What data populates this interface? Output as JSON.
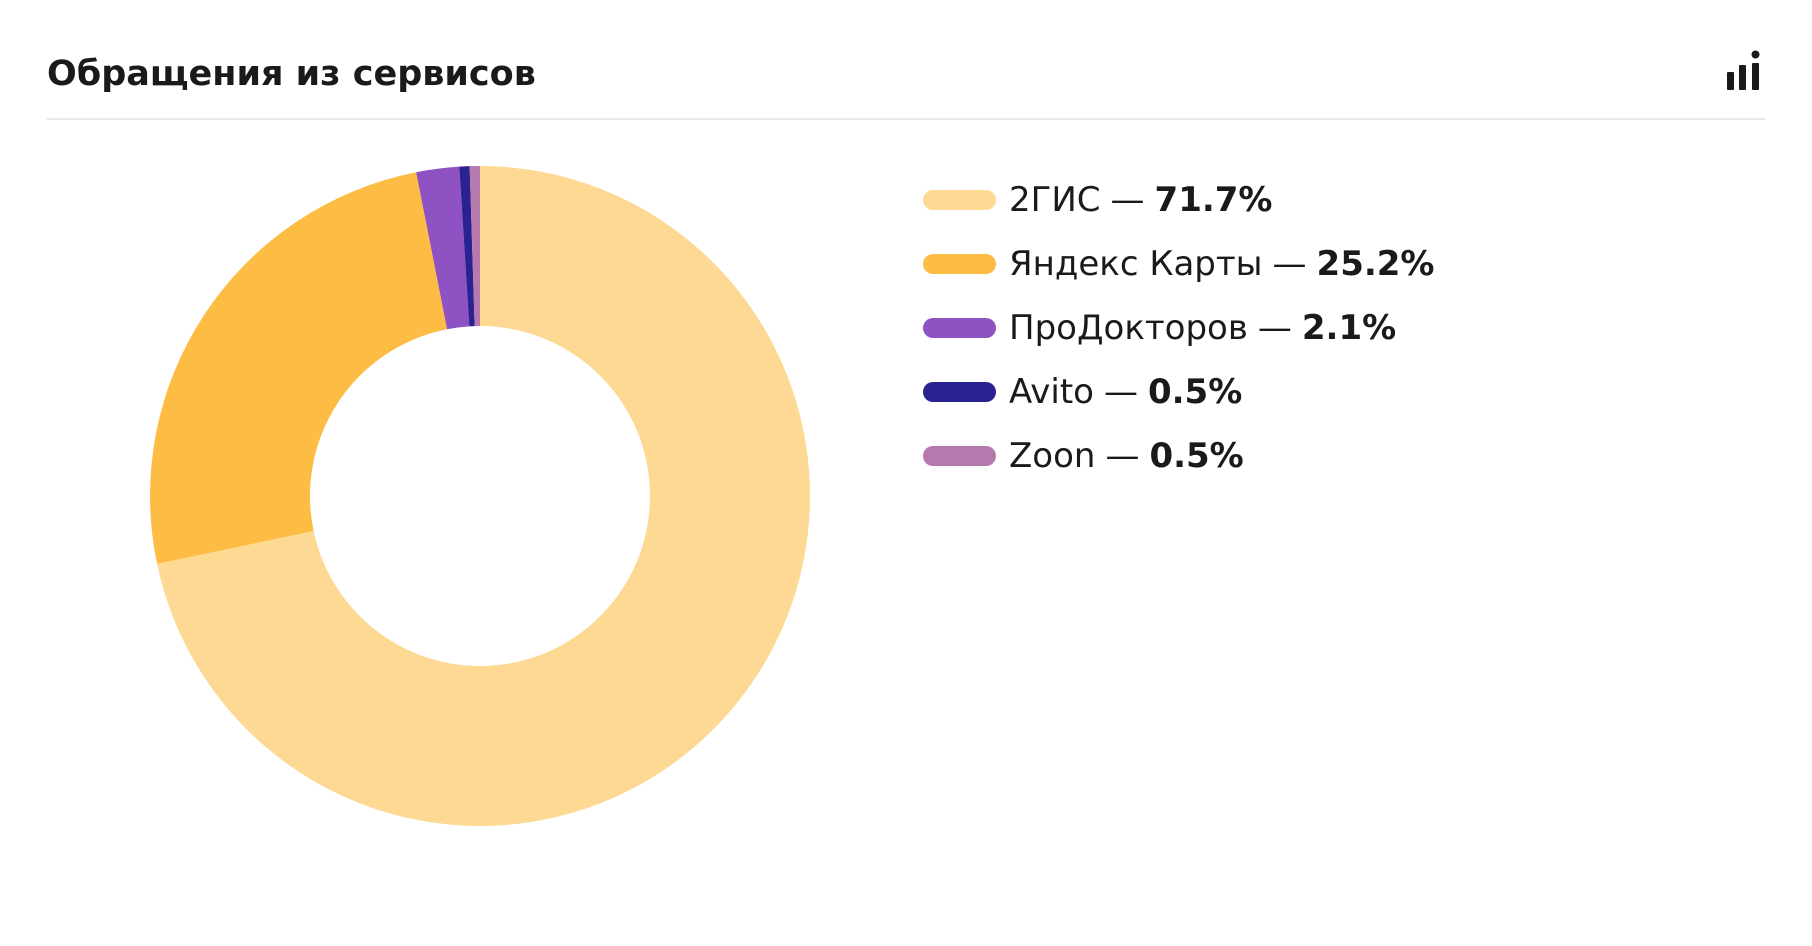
{
  "header": {
    "title": "Обращения из сервисов",
    "chart_type_icon": "bar-chart-icon"
  },
  "legend": {
    "separator": "—"
  },
  "colors": {
    "2gis": "#fdd994",
    "yandex": "#fdbc43",
    "prodoctorov": "#8f52c2",
    "avito": "#2b2292",
    "zoon": "#b679ad"
  },
  "chart_data": {
    "type": "pie",
    "donut": true,
    "start_angle_deg": 0,
    "direction": "clockwise",
    "legend_position": "right",
    "slices": [
      {
        "label": "2ГИС",
        "value": 71.7,
        "display": "71.7%",
        "color": "#fdd994"
      },
      {
        "label": "Яндекс Карты",
        "value": 25.2,
        "display": "25.2%",
        "color": "#fdbc43"
      },
      {
        "label": "ПроДокторов",
        "value": 2.1,
        "display": "2.1%",
        "color": "#8f52c2"
      },
      {
        "label": "Avito",
        "value": 0.5,
        "display": "0.5%",
        "color": "#2b2292"
      },
      {
        "label": "Zoon",
        "value": 0.5,
        "display": "0.5%",
        "color": "#b679ad"
      }
    ]
  }
}
